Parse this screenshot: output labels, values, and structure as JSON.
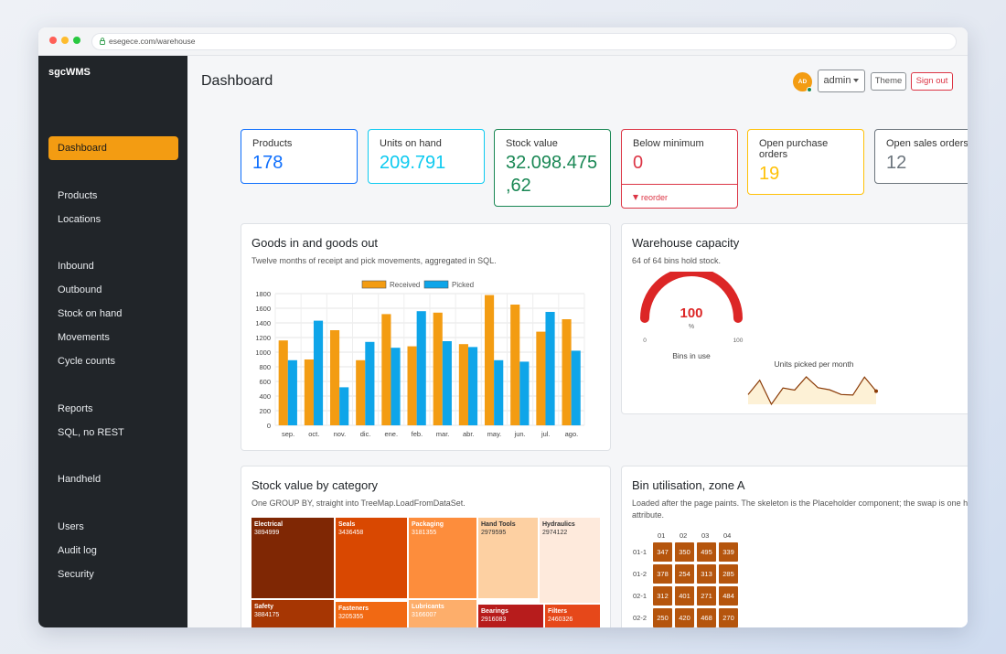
{
  "browser": {
    "url": "esegece.com/warehouse"
  },
  "sidebar": {
    "brand": "sgcWMS",
    "items": [
      "Dashboard",
      "Products",
      "Locations",
      "Inbound",
      "Outbound",
      "Stock on hand",
      "Movements",
      "Cycle counts",
      "Reports",
      "SQL, no REST",
      "Handheld",
      "Users",
      "Audit log",
      "Security"
    ]
  },
  "header": {
    "title": "Dashboard",
    "avatar": "AD",
    "user": "admin",
    "theme": "Theme",
    "signout": "Sign out"
  },
  "kpis": [
    {
      "label": "Products",
      "value": "178",
      "color": "#0d6efd"
    },
    {
      "label": "Units on hand",
      "value": "209.791",
      "color": "#0dcaf0"
    },
    {
      "label": "Stock value",
      "value_line1": "32.098.475",
      "value_line2": ",62",
      "color": "#198754"
    },
    {
      "label": "Below minimum",
      "value": "0",
      "foot": "reorder",
      "color": "#dc3545"
    },
    {
      "label_line1": "Open purchase",
      "label_line2": "orders",
      "value": "19",
      "color": "#ffc107"
    },
    {
      "label": "Open sales orders",
      "value": "12",
      "color": "#6c757d"
    }
  ],
  "goods": {
    "title": "Goods in and goods out",
    "subtitle": "Twelve months of receipt and pick movements, aggregated in SQL."
  },
  "chart_data": {
    "type": "bar",
    "categories": [
      "sep.",
      "oct.",
      "nov.",
      "dic.",
      "ene.",
      "feb.",
      "mar.",
      "abr.",
      "may.",
      "jun.",
      "jul.",
      "ago."
    ],
    "series": [
      {
        "name": "Received",
        "color": "#f39c12",
        "values": [
          1160,
          900,
          1300,
          890,
          1520,
          1080,
          1540,
          1110,
          1780,
          1650,
          1280,
          1450
        ]
      },
      {
        "name": "Picked",
        "color": "#0ea5e9",
        "values": [
          890,
          1430,
          520,
          1140,
          1060,
          1560,
          1150,
          1070,
          890,
          870,
          1550,
          1020
        ]
      }
    ],
    "ylim": [
      0,
      1800
    ],
    "yticks": [
      0,
      200,
      400,
      600,
      800,
      1000,
      1200,
      1400,
      1600,
      1800
    ],
    "grid": true,
    "legend": "top"
  },
  "capacity": {
    "title": "Warehouse capacity",
    "subtitle": "64 of 64 bins hold stock.",
    "gauge_value": "100",
    "gauge_unit": "%",
    "gauge_min": "0",
    "gauge_max": "100",
    "gauge_caption": "Bins in use",
    "gauge_color": "#dc2626",
    "spark_title": "Units picked per month",
    "spark_values": [
      890,
      1430,
      520,
      1140,
      1060,
      1560,
      1150,
      1070,
      890,
      870,
      1550,
      1020
    ]
  },
  "category": {
    "title": "Stock value by category",
    "subtitle": "One GROUP BY, straight into TreeMap.LoadFromDataSet.",
    "items": [
      {
        "name": "Electrical",
        "value": "3894999",
        "color": "#7f2704"
      },
      {
        "name": "Seals",
        "value": "3436458",
        "color": "#d94801"
      },
      {
        "name": "Packaging",
        "value": "3181355",
        "color": "#fd8d3c"
      },
      {
        "name": "Hand Tools",
        "value": "2979595",
        "color": "#fdd0a2"
      },
      {
        "name": "Hydraulics",
        "value": "2974122",
        "color": "#feeadc"
      },
      {
        "name": "Safety",
        "value": "3884175",
        "color": "#a63603"
      },
      {
        "name": "Fasteners",
        "value": "3205355",
        "color": "#f16913"
      },
      {
        "name": "Lubricants",
        "value": "3166007",
        "color": "#fdae6b"
      },
      {
        "name": "Bearings",
        "value": "2916083",
        "color": "#b71c1c"
      },
      {
        "name": "Filters",
        "value": "2460326",
        "color": "#e6481a"
      }
    ]
  },
  "bins": {
    "title": "Bin utilisation, zone A",
    "subtitle_line1": "Loaded after the page paints. The skeleton is the Placeholder component; the swap is one htmx",
    "subtitle_line2": "attribute.",
    "cols": [
      "01",
      "02",
      "03",
      "04"
    ],
    "rows": [
      "01-1",
      "01-2",
      "02-1",
      "02-2"
    ],
    "values": [
      [
        347,
        350,
        495,
        339
      ],
      [
        378,
        254,
        313,
        285
      ],
      [
        312,
        401,
        271,
        484
      ],
      [
        250,
        420,
        468,
        270
      ]
    ],
    "scale_min": "0",
    "scale_max": "100"
  }
}
